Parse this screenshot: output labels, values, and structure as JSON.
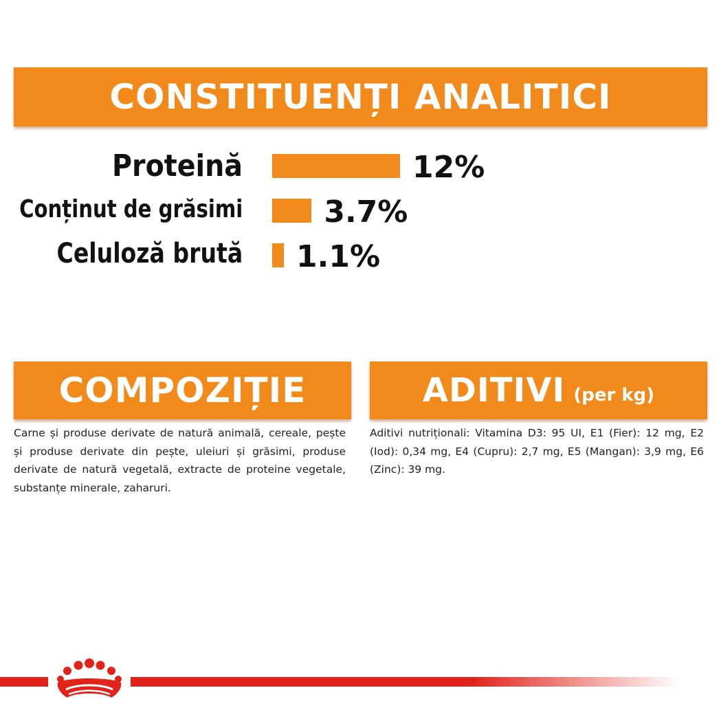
{
  "analytic": {
    "title": "CONSTITUENȚI ANALITICI",
    "items": [
      {
        "label": "Proteină",
        "value": "12%",
        "percent": 12
      },
      {
        "label": "Conținut de grăsimi",
        "value": "3.7%",
        "percent": 3.7
      },
      {
        "label": "Celuloză brută",
        "value": "1.1%",
        "percent": 1.1
      }
    ]
  },
  "composition": {
    "title": "COMPOZIȚIE",
    "text": "Carne și produse derivate de natură animală, cereale, pește și produse derivate din pește, uleiuri și grăsimi, produse derivate de natură vegetală, extracte de proteine vegetale, substanțe minerale, zaharuri."
  },
  "additives": {
    "title": "ADITIVI",
    "title_suffix": "(per kg)",
    "text": "Aditivi nutriționali: Vitamina D3: 95 UI, E1 (Fier): 12 mg, E2 (Iod): 0,34 mg, E4 (Cupru): 2,7 mg, E5 (Mangan): 3,9 mg, E6 (Zinc): 39 mg."
  },
  "brand": {
    "logo_icon": "royal-canin-crown-icon"
  },
  "colors": {
    "accent_orange": "#f18a1a",
    "brand_red": "#e2231a",
    "text": "#111111"
  }
}
